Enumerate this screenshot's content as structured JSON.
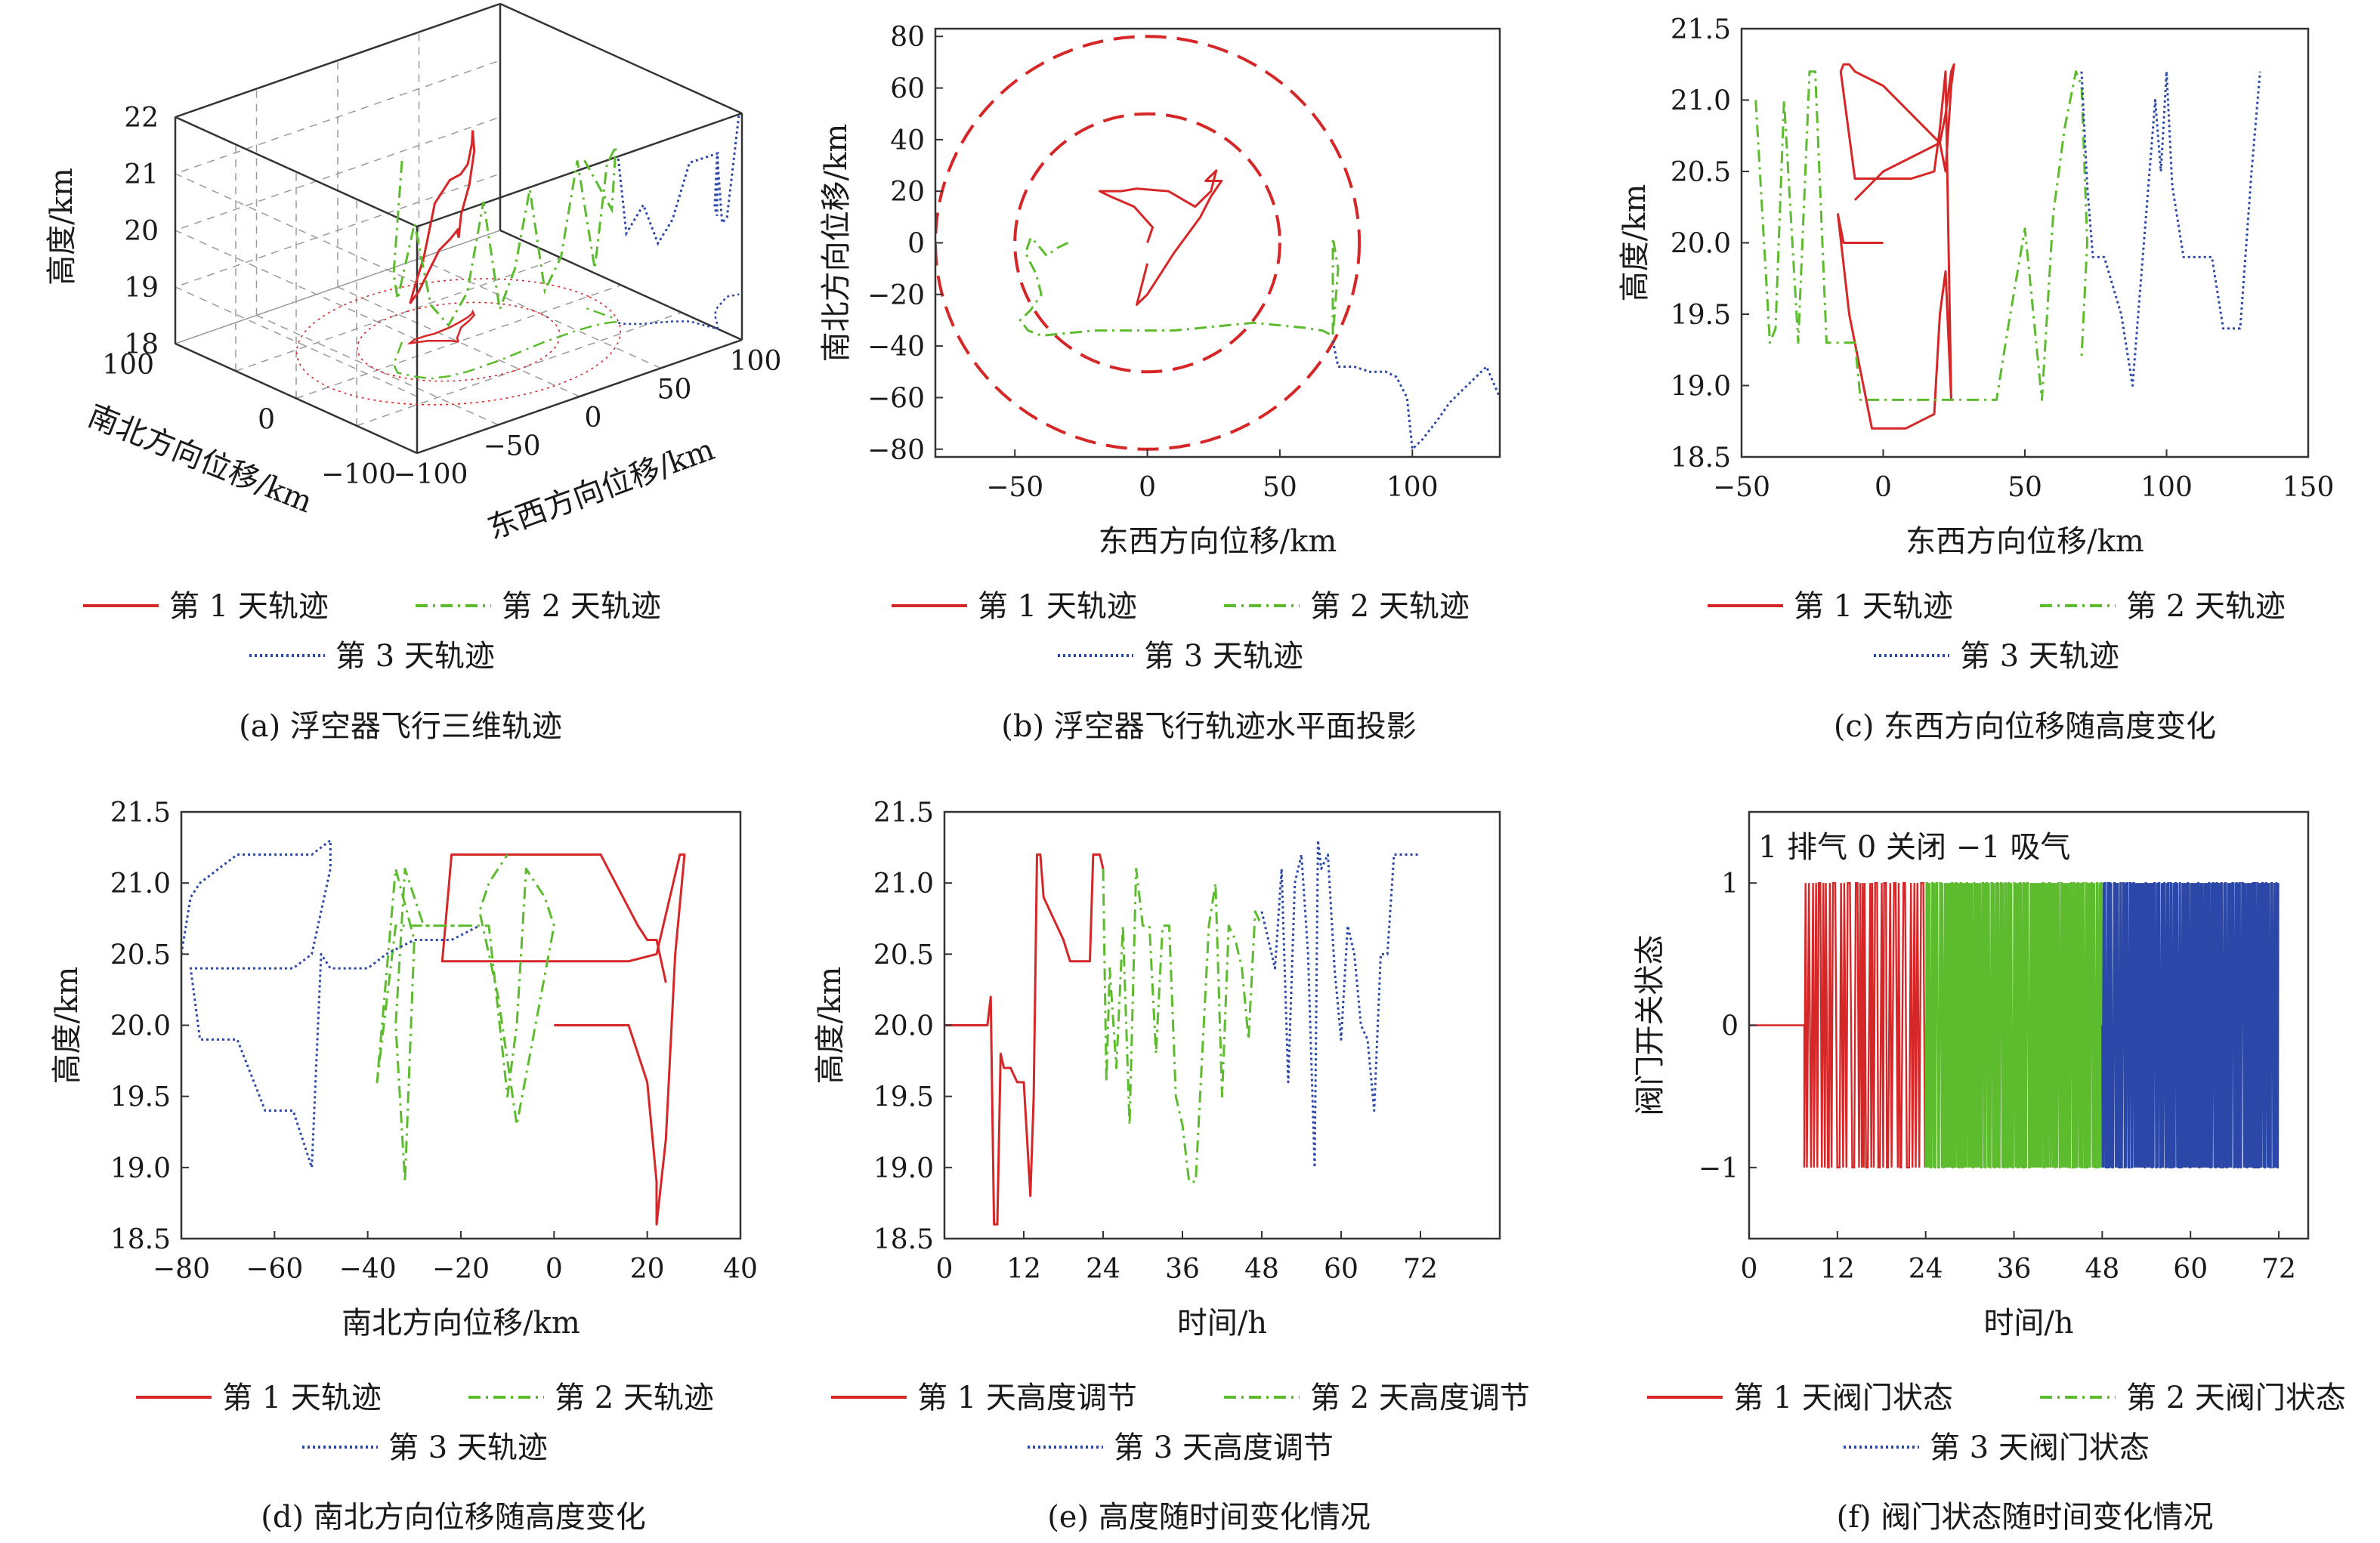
{
  "colors": {
    "day1": "#d62728",
    "day2": "#5dbb2e",
    "day3": "#2b48a8",
    "circle": "#d62728"
  },
  "chart_data": [
    {
      "id": "a",
      "type": "line3d",
      "caption": "(a) 浮空器飞行三维轨迹",
      "zlabel": "高度/km",
      "ylabel": "南北方向位移/km",
      "xlabel": "东西方向位移/km",
      "zticks": [
        "18",
        "19",
        "20",
        "21",
        "22"
      ],
      "zlim": [
        18,
        22
      ],
      "yticks": [
        "100",
        "0",
        "−100"
      ],
      "ylim": [
        -100,
        100
      ],
      "xticks": [
        "−100",
        "−50",
        "0",
        "50",
        "100"
      ],
      "xlim": [
        -100,
        100
      ],
      "series": [
        {
          "name": "第 1 天轨迹",
          "style": "solid",
          "x": [
            0,
            -2,
            -6,
            -10,
            -14,
            -18,
            -14,
            -8,
            -2,
            8,
            16,
            22,
            26,
            28,
            26,
            20,
            12,
            6,
            2,
            0
          ],
          "y": [
            0,
            4,
            8,
            12,
            14,
            16,
            18,
            18,
            17,
            18,
            20,
            22,
            24,
            26,
            22,
            18,
            14,
            8,
            4,
            0
          ],
          "z": [
            20,
            19.8,
            19.6,
            19.2,
            18.9,
            18.7,
            18.9,
            19.4,
            20.3,
            20.6,
            20.6,
            20.7,
            21.0,
            21.2,
            20.9,
            20.4,
            20.0,
            19.7,
            19.9,
            20.0
          ]
        },
        {
          "name": "第 2 天轨迹",
          "style": "dashdot",
          "x": [
            -20,
            -30,
            -40,
            -45,
            -42,
            -38,
            -30,
            -20,
            -10,
            0,
            10,
            20,
            30,
            40,
            50,
            60,
            66,
            70,
            72,
            70
          ],
          "y": [
            20,
            10,
            0,
            -10,
            -20,
            -28,
            -32,
            -34,
            -34,
            -34,
            -33,
            -32,
            -31,
            -31,
            -31,
            -32,
            -34,
            -36,
            -30,
            -10
          ],
          "z": [
            21.2,
            20.4,
            19.6,
            19.3,
            20.7,
            19.3,
            18.9,
            19.4,
            20.9,
            18.9,
            19.5,
            20.8,
            18.9,
            19.4,
            21.0,
            19.0,
            20.8,
            21.1,
            19.9,
            20.6
          ]
        },
        {
          "name": "第 3 天轨迹",
          "style": "dotted",
          "x": [
            70,
            72,
            78,
            84,
            90,
            96,
            100,
            104,
            110,
            116,
            122,
            128,
            134
          ],
          "y": [
            -38,
            -42,
            -48,
            -52,
            -56,
            -62,
            -80,
            -74,
            -64,
            -58,
            -54,
            -50,
            -52
          ],
          "z": [
            20.9,
            19.6,
            20.1,
            19.4,
            19.8,
            20.8,
            21.1,
            19.9,
            19.9,
            20.7,
            19.4,
            19.4,
            21.2
          ]
        }
      ]
    },
    {
      "id": "b",
      "type": "line",
      "caption": "(b) 浮空器飞行轨迹水平面投影",
      "xlabel": "东西方向位移/km",
      "ylabel": "南北方向位移/km",
      "xlim": [
        -80,
        133
      ],
      "ylim": [
        -83,
        83
      ],
      "xticks": [
        -50,
        0,
        50,
        100
      ],
      "yticks": [
        -80,
        -60,
        -40,
        -20,
        0,
        20,
        40,
        60,
        80
      ],
      "circles": [
        {
          "r": 80,
          "style": "dashed"
        },
        {
          "r": 50,
          "style": "dashed"
        }
      ],
      "series": [
        {
          "name": "第 1 天轨迹",
          "style": "solid",
          "x": [
            0,
            2,
            -5,
            -14,
            -18,
            -16,
            -10,
            -4,
            8,
            18,
            24,
            26,
            22,
            28,
            24,
            20,
            10,
            0,
            -4,
            0
          ],
          "y": [
            0,
            6,
            14,
            18,
            20,
            20,
            20,
            21,
            20,
            14,
            20,
            28,
            24,
            24,
            18,
            10,
            -4,
            -20,
            -24,
            -8
          ]
        },
        {
          "name": "第 2 天轨迹",
          "style": "dashdot",
          "x": [
            -30,
            -34,
            -38,
            -42,
            -44,
            -46,
            -42,
            -40,
            -44,
            -48,
            -45,
            -40,
            -30,
            -20,
            -10,
            0,
            10,
            20,
            30,
            40,
            50,
            60,
            66,
            70,
            72,
            70,
            70
          ],
          "y": [
            0,
            -2,
            -5,
            0,
            2,
            -4,
            -12,
            -20,
            -26,
            -30,
            -34,
            -36,
            -35,
            -34,
            -34,
            -34,
            -34,
            -33,
            -32,
            -31,
            -32,
            -33,
            -34,
            -36,
            -10,
            2,
            -38
          ]
        },
        {
          "name": "第 3 天轨迹",
          "style": "dotted",
          "x": [
            70,
            72,
            78,
            84,
            90,
            94,
            98,
            100,
            104,
            110,
            114,
            118,
            124,
            128,
            133
          ],
          "y": [
            -38,
            -48,
            -48,
            -50,
            -50,
            -52,
            -60,
            -80,
            -76,
            -68,
            -62,
            -58,
            -52,
            -48,
            -60
          ]
        }
      ]
    },
    {
      "id": "c",
      "type": "line",
      "caption": "(c) 东西方向位移随高度变化",
      "xlabel": "东西方向位移/km",
      "ylabel": "高度/km",
      "xlim": [
        -50,
        150
      ],
      "ylim": [
        18.5,
        21.5
      ],
      "xticks": [
        -50,
        0,
        50,
        100,
        150
      ],
      "yticks": [
        18.5,
        19.0,
        19.5,
        20.0,
        20.5,
        21.0,
        21.5
      ],
      "series": [
        {
          "name": "第 1 天轨迹",
          "style": "solid",
          "x": [
            0,
            -8,
            -14,
            -16,
            -12,
            -4,
            8,
            18,
            20,
            22,
            24,
            24,
            22,
            20,
            18,
            10,
            0,
            -10,
            -15,
            -14,
            -12,
            -10,
            0,
            20,
            22,
            24,
            25,
            24,
            22,
            20,
            0,
            -10
          ],
          "y": [
            20.0,
            20.0,
            20.0,
            20.2,
            19.5,
            18.7,
            18.7,
            18.8,
            19.5,
            19.8,
            18.9,
            18.9,
            21.2,
            20.8,
            20.5,
            20.45,
            20.45,
            20.45,
            21.2,
            21.25,
            21.25,
            21.2,
            21.1,
            20.7,
            20.5,
            21.1,
            21.25,
            21.2,
            20.9,
            20.7,
            20.5,
            20.3
          ]
        },
        {
          "name": "第 2 天轨迹",
          "style": "dashdot",
          "x": [
            -45,
            -40,
            -38,
            -35,
            -30,
            -26,
            -24,
            -20,
            -18,
            -14,
            -10,
            -8,
            0,
            10,
            20,
            30,
            40,
            44,
            50,
            56,
            60,
            64,
            68,
            70,
            72,
            70
          ],
          "y": [
            21.0,
            19.3,
            19.4,
            21.0,
            19.3,
            21.2,
            21.2,
            19.3,
            19.3,
            19.3,
            19.3,
            18.9,
            18.9,
            18.9,
            18.9,
            18.9,
            18.9,
            19.4,
            20.1,
            18.9,
            20.2,
            20.8,
            21.2,
            21.1,
            20.0,
            19.2
          ]
        },
        {
          "name": "第 3 天轨迹",
          "style": "dotted",
          "x": [
            70,
            72,
            74,
            78,
            84,
            88,
            92,
            96,
            98,
            100,
            102,
            106,
            110,
            116,
            120,
            124,
            126,
            130,
            133
          ],
          "y": [
            21.2,
            20.4,
            19.9,
            19.9,
            19.5,
            19.0,
            20.0,
            21.0,
            20.5,
            21.2,
            20.4,
            19.9,
            19.9,
            19.9,
            19.4,
            19.4,
            19.4,
            20.5,
            21.2
          ]
        }
      ]
    },
    {
      "id": "d",
      "type": "line",
      "caption": "(d) 南北方向位移随高度变化",
      "xlabel": "南北方向位移/km",
      "ylabel": "高度/km",
      "xlim": [
        -80,
        40
      ],
      "ylim": [
        18.5,
        21.5
      ],
      "xticks": [
        -80,
        -60,
        -40,
        -20,
        0,
        20,
        40
      ],
      "yticks": [
        18.5,
        19.0,
        19.5,
        20.0,
        20.5,
        21.0,
        21.5
      ],
      "series": [
        {
          "name": "第 1 天轨迹",
          "style": "solid",
          "x": [
            0,
            8,
            16,
            20,
            22,
            22,
            24,
            26,
            28,
            27,
            22,
            16,
            8,
            0,
            -10,
            -20,
            -24,
            -22,
            -18,
            -10,
            0,
            10,
            18,
            20,
            22,
            24
          ],
          "y": [
            20.0,
            20.0,
            20.0,
            19.6,
            18.9,
            18.6,
            19.2,
            20.5,
            21.2,
            21.2,
            20.5,
            20.45,
            20.45,
            20.45,
            20.45,
            20.45,
            20.45,
            21.2,
            21.2,
            21.2,
            21.2,
            21.2,
            20.7,
            20.6,
            20.6,
            20.3
          ]
        },
        {
          "name": "第 2 天轨迹",
          "style": "dashdot",
          "x": [
            -18,
            -22,
            -28,
            -32,
            -34,
            -32,
            -30,
            -34,
            -38,
            -34,
            -30,
            -26,
            -22,
            -18,
            -14,
            -10,
            -8,
            -6,
            -2,
            0,
            -4,
            -8,
            -12,
            -16,
            -14,
            -10
          ],
          "y": [
            20.7,
            20.7,
            20.7,
            21.1,
            20.0,
            18.9,
            20.6,
            21.1,
            19.6,
            20.7,
            20.7,
            20.7,
            20.7,
            20.7,
            20.7,
            19.5,
            20.0,
            21.1,
            20.9,
            20.7,
            20.0,
            19.3,
            20.2,
            20.8,
            21.0,
            21.2
          ]
        },
        {
          "name": "第 3 天轨迹",
          "style": "dotted",
          "x": [
            -80,
            -78,
            -76,
            -72,
            -68,
            -62,
            -56,
            -52,
            -48,
            -48,
            -52,
            -56,
            -60,
            -64,
            -68,
            -72,
            -76,
            -78,
            -76,
            -72,
            -68,
            -62,
            -56,
            -52,
            -50,
            -48,
            -44,
            -40,
            -36,
            -30,
            -22,
            -16
          ],
          "y": [
            20.5,
            20.9,
            21.0,
            21.1,
            21.2,
            21.2,
            21.2,
            21.2,
            21.3,
            21.1,
            20.5,
            20.4,
            20.4,
            20.4,
            20.4,
            20.4,
            20.4,
            20.4,
            19.9,
            19.9,
            19.9,
            19.4,
            19.4,
            19.0,
            20.5,
            20.4,
            20.4,
            20.4,
            20.5,
            20.6,
            20.6,
            20.7
          ]
        }
      ]
    },
    {
      "id": "e",
      "type": "line",
      "caption": "(e) 高度随时间变化情况",
      "xlabel": "时间/h",
      "ylabel": "高度/km",
      "xlim": [
        0,
        84
      ],
      "ylim": [
        18.5,
        21.5
      ],
      "xticks": [
        0,
        12,
        24,
        36,
        48,
        60,
        72
      ],
      "yticks": [
        18.5,
        19.0,
        19.5,
        20.0,
        20.5,
        21.0,
        21.5
      ],
      "series": [
        {
          "name": "第 1 天高度调节",
          "style": "solid",
          "x": [
            0,
            6.5,
            7,
            7.5,
            8,
            8.5,
            9,
            10,
            11,
            12,
            13,
            13.5,
            14,
            14.5,
            15,
            16,
            17,
            18,
            19,
            20,
            21,
            22,
            22.5,
            23,
            23.5,
            24
          ],
          "y": [
            20.0,
            20.0,
            20.2,
            18.6,
            18.6,
            19.8,
            19.7,
            19.7,
            19.6,
            19.6,
            18.8,
            19.5,
            21.2,
            21.2,
            20.9,
            20.8,
            20.7,
            20.6,
            20.45,
            20.45,
            20.45,
            20.45,
            21.2,
            21.2,
            21.2,
            21.1
          ]
        },
        {
          "name": "第 2 天高度调节",
          "style": "dashdot",
          "x": [
            24,
            24.5,
            25,
            26,
            27,
            28,
            29,
            30,
            31,
            32,
            33,
            34,
            35,
            36,
            37,
            38,
            39,
            40,
            41,
            42,
            43,
            44,
            45,
            46,
            47,
            48
          ],
          "y": [
            21.1,
            19.6,
            20.4,
            19.7,
            20.7,
            19.3,
            21.1,
            20.7,
            20.7,
            19.8,
            20.7,
            20.7,
            19.5,
            19.3,
            18.9,
            18.9,
            19.8,
            20.7,
            21.0,
            19.5,
            20.7,
            20.6,
            20.4,
            19.9,
            20.8,
            20.7
          ]
        },
        {
          "name": "第 3 天高度调节",
          "style": "dotted",
          "x": [
            48,
            49,
            50,
            51,
            52,
            53,
            54,
            55,
            56,
            56.5,
            57,
            58,
            59,
            60,
            61,
            62,
            63,
            64,
            65,
            66,
            67,
            68,
            69,
            70,
            71,
            72
          ],
          "y": [
            20.8,
            20.6,
            20.4,
            21.1,
            19.6,
            21.0,
            21.2,
            20.5,
            19.0,
            21.3,
            21.1,
            21.2,
            20.4,
            19.9,
            20.7,
            20.5,
            20.0,
            19.9,
            19.4,
            20.5,
            20.5,
            21.2,
            21.2,
            21.2,
            21.2,
            21.2
          ]
        }
      ]
    },
    {
      "id": "f",
      "type": "line",
      "caption": "(f) 阀门状态随时间变化情况",
      "xlabel": "时间/h",
      "ylabel": "阀门开关状态",
      "annotation": "1 排气 0 关闭 −1 吸气",
      "xlim": [
        0,
        76
      ],
      "ylim": [
        -1.5,
        1.5
      ],
      "xticks": [
        0,
        12,
        24,
        36,
        48,
        60,
        72
      ],
      "yticks": [
        -1,
        0,
        1
      ],
      "series": [
        {
          "name": "第 1 天阀门状态",
          "style": "solid",
          "x": [
            0,
            24
          ],
          "y": [
            1,
            -1
          ]
        },
        {
          "name": "第 2 天阀门状态",
          "style": "dashdot",
          "x": [
            24,
            48
          ],
          "y": [
            1,
            -1
          ]
        },
        {
          "name": "第 3 天阀门状态",
          "style": "dotted",
          "x": [
            48,
            72
          ],
          "y": [
            1,
            -1
          ]
        }
      ]
    }
  ]
}
